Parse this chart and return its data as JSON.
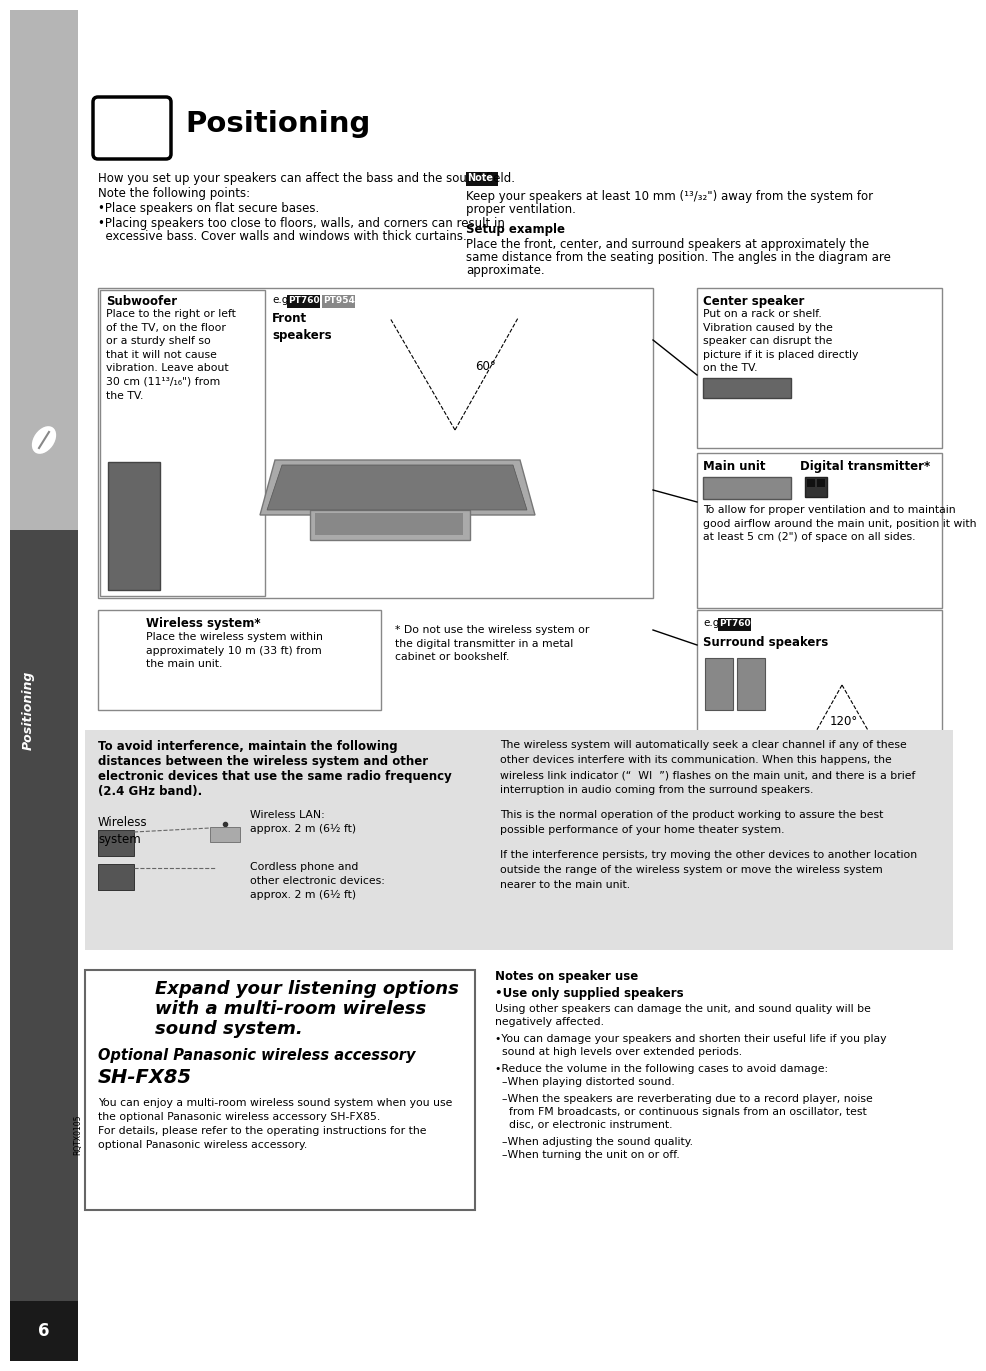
{
  "page_bg": "#ffffff",
  "sidebar_gray_light": "#b0b0b0",
  "sidebar_gray_dark": "#4a4a4a",
  "sidebar_text": "Positioning",
  "page_number": "6",
  "title": "Positioning",
  "intro_line1": "How you set up your speakers can affect the bass and the sound field.",
  "intro_line2": "Note the following points:",
  "bullet1": "•Place speakers on flat secure bases.",
  "bullet2": "•Placing speakers too close to floors, walls, and corners can result in",
  "bullet2b": "  excessive bass. Cover walls and windows with thick curtains.",
  "note_label": "Note",
  "note_text1": "Keep your speakers at least 10 mm (¹³/₃₂\") away from the system for",
  "note_text2": "proper ventilation.",
  "setup_example_title": "Setup example",
  "setup_text1": "Place the front, center, and surround speakers at approximately the",
  "setup_text2": "same distance from the seating position. The angles in the diagram are",
  "setup_text3": "approximate.",
  "subwoofer_title": "Subwoofer",
  "subwoofer_text": "Place to the right or left\nof the TV, on the floor\nor a sturdy shelf so\nthat it will not cause\nvibration. Leave about\n30 cm (11¹³/₁₆\") from\nthe TV.",
  "eg1": "e.g.",
  "pt760": "PT760",
  "pt954": "PT954",
  "front_speakers": "Front\nspeakers",
  "angle_60": "60°",
  "center_speaker_title": "Center speaker",
  "center_speaker_text": "Put on a rack or shelf.\nVibration caused by the\nspeaker can disrupt the\npicture if it is placed directly\non the TV.",
  "main_unit_label": "Main unit",
  "digital_tx_label": "Digital transmitter*",
  "main_unit_text": "To allow for proper ventilation and to maintain\ngood airflow around the main unit, position it with\nat least 5 cm (2\") of space on all sides.",
  "eg2": "e.g.",
  "pt760b": "PT760",
  "surround_label": "Surround speakers",
  "angle_120": "120°",
  "wireless_sys_title": "Wireless system*",
  "wireless_sys_text": "Place the wireless system within\napproximately 10 m (33 ft) from\nthe main unit.",
  "footnote": "* Do not use the wireless system or\nthe digital transmitter in a metal\ncabinet or bookshelf.",
  "interf_bold1": "To avoid interference, maintain the following",
  "interf_bold2": "distances between the wireless system and other",
  "interf_bold3": "electronic devices that use the same radio frequency",
  "interf_bold4": "(2.4 GHz band).",
  "wireless_sys_label": "Wireless\nsystem",
  "wlan_label": "Wireless LAN:\napprox. 2 m (6½ ft)",
  "cordless_label": "Cordless phone and\nother electronic devices:\napprox. 2 m (6½ ft)",
  "right_p1l1": "The wireless system will automatically seek a clear channel if any of these",
  "right_p1l2": "other devices interfere with its communication. When this happens, the",
  "right_p1l3": "wireless link indicator (“  WI  ”) flashes on the main unit, and there is a brief",
  "right_p1l4": "interruption in audio coming from the surround speakers.",
  "right_p2l1": "This is the normal operation of the product working to assure the best",
  "right_p2l2": "possible performance of your home theater system.",
  "right_p3l1": "If the interference persists, try moving the other devices to another location",
  "right_p3l2": "outside the range of the wireless system or move the wireless system",
  "right_p3l3": "nearer to the main unit.",
  "expand_line1": "Expand your listening options",
  "expand_line2": "with a multi-room wireless",
  "expand_line3": "sound system.",
  "optional_line1": "Optional Panasonic wireless accessory",
  "optional_line2": "SH-FX85",
  "expand_body1": "You can enjoy a multi-room wireless sound system when you use",
  "expand_body2": "the optional Panasonic wireless accessory SH-FX85.",
  "expand_body3": "For details, please refer to the operating instructions for the",
  "expand_body4": "optional Panasonic wireless accessory.",
  "rqtx": "RQTX0105",
  "notes_title": "Notes on speaker use",
  "use_only": "•Use only supplied speakers",
  "notes_body1": "Using other speakers can damage the unit, and sound quality will be",
  "notes_body2": "negatively affected.",
  "notes_body3": "•You can damage your speakers and shorten their useful life if you play",
  "notes_body4": "  sound at high levels over extended periods.",
  "notes_body5": "•Reduce the volume in the following cases to avoid damage:",
  "notes_body6": "  –When playing distorted sound.",
  "notes_body7": "  –When the speakers are reverberating due to a record player, noise",
  "notes_body8": "    from FM broadcasts, or continuous signals from an oscillator, test",
  "notes_body9": "    disc, or electronic instrument.",
  "notes_body10": "  –When adjusting the sound quality.",
  "notes_body11": "  –When turning the unit on or off."
}
